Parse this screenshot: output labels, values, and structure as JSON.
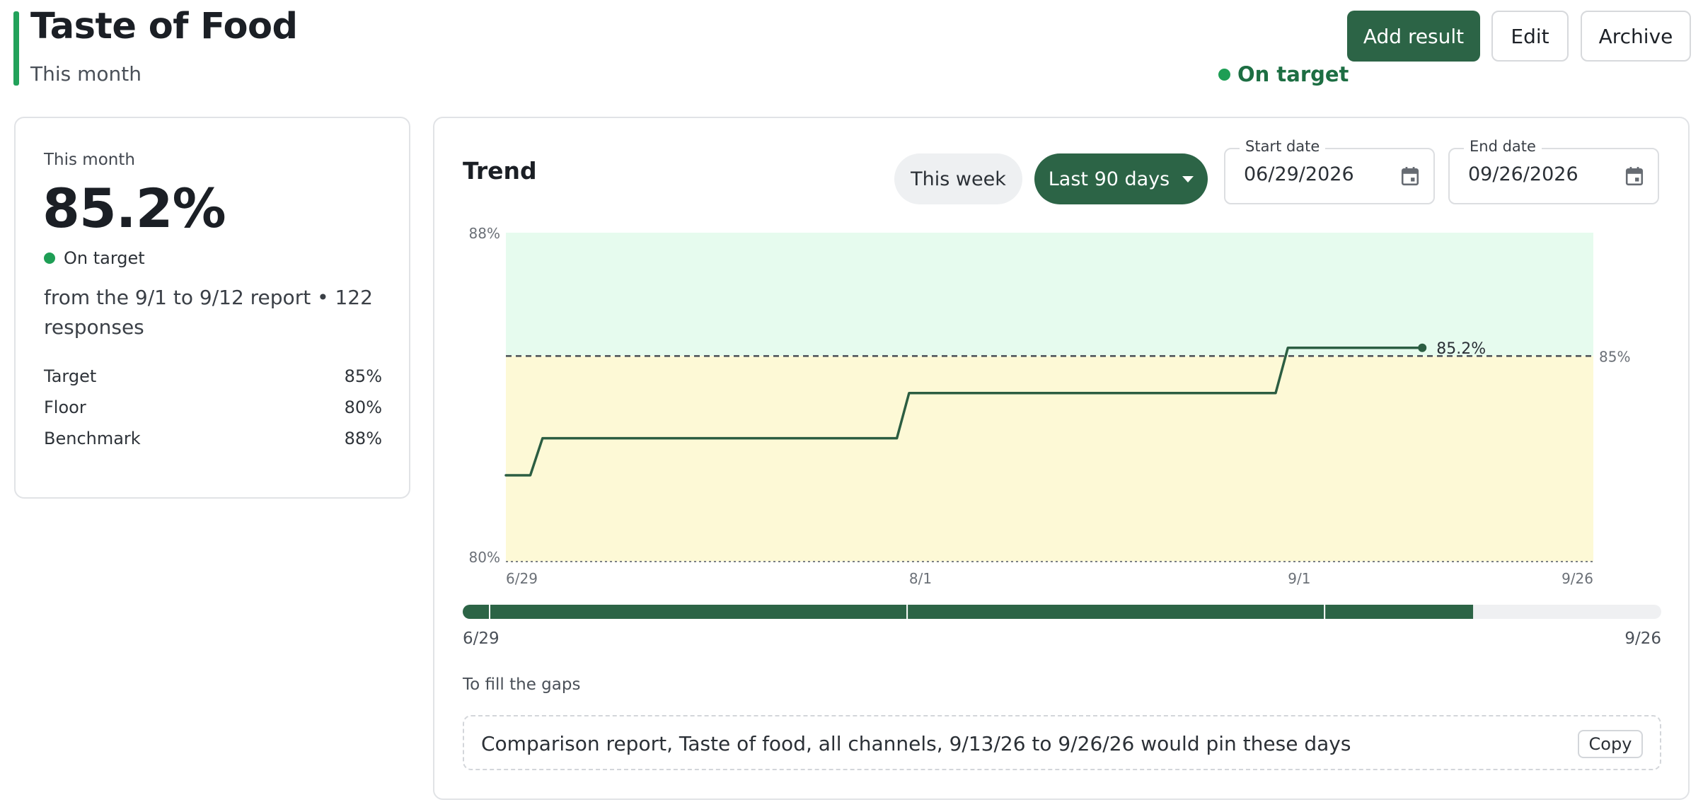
{
  "header": {
    "title": "Taste of Food",
    "subtitle": "This month",
    "status": "On target",
    "accent_color": "#22a25a"
  },
  "toolbar": {
    "add_result_label": "Add result",
    "edit_label": "Edit",
    "archive_label": "Archive",
    "primary_color": "#2c6446"
  },
  "summary": {
    "period_label": "This month",
    "value": "85.2%",
    "status": "On target",
    "description": "from the 9/1 to 9/12 report • 122 responses",
    "metrics": [
      {
        "label": "Target",
        "value": "85%"
      },
      {
        "label": "Floor",
        "value": "80%"
      },
      {
        "label": "Benchmark",
        "value": "88%"
      }
    ]
  },
  "trend": {
    "title": "Trend",
    "range_options": [
      "This week",
      "Last 90 days"
    ],
    "selected_range": "Last 90 days",
    "start_date": {
      "label": "Start date",
      "value": "06/29/2026",
      "icon": "calendar-icon"
    },
    "end_date": {
      "label": "End date",
      "value": "09/26/2026",
      "icon": "calendar-icon"
    }
  },
  "chart_data": {
    "type": "line",
    "title": "",
    "xlabel": "",
    "ylabel": "",
    "ylim": [
      80,
      88
    ],
    "ytick_labels": [
      "88%",
      "80%"
    ],
    "xlim": [
      "2026-06-29",
      "2026-09-26"
    ],
    "x_tick_labels": [
      "6/29",
      "8/1",
      "9/1",
      "9/26"
    ],
    "series": [
      {
        "points": [
          {
            "x": "2026-06-29",
            "y": 82.1
          },
          {
            "x": "2026-07-01",
            "y": 82.1
          },
          {
            "x": "2026-07-02",
            "y": 83.0
          },
          {
            "x": "2026-07-31",
            "y": 83.0
          },
          {
            "x": "2026-08-01",
            "y": 84.1
          },
          {
            "x": "2026-08-31",
            "y": 84.1
          },
          {
            "x": "2026-09-01",
            "y": 85.2
          },
          {
            "x": "2026-09-12",
            "y": 85.2
          }
        ],
        "color": "#2c5e42"
      }
    ],
    "last_value_label": "85.2%",
    "target_line": {
      "y": 85,
      "label": "85%"
    },
    "floor_line": {
      "y": 80
    },
    "bands": [
      {
        "from": 85,
        "to": 88,
        "color": "#e6fbee"
      },
      {
        "from": 80,
        "to": 85,
        "color": "#fdf9d6"
      }
    ]
  },
  "coverage": {
    "start_label": "6/29",
    "end_label": "9/26",
    "covered_fraction": 0.843,
    "segment_breaks": [
      "8/1",
      "9/1"
    ],
    "covered_color": "#2c6446",
    "empty_color": "#eff0f2"
  },
  "gaps": {
    "caption": "To fill the gaps",
    "text": "Comparison report, Taste of food, all channels, 9/13/26 to 9/26/26 would pin these days",
    "copy_label": "Copy"
  }
}
